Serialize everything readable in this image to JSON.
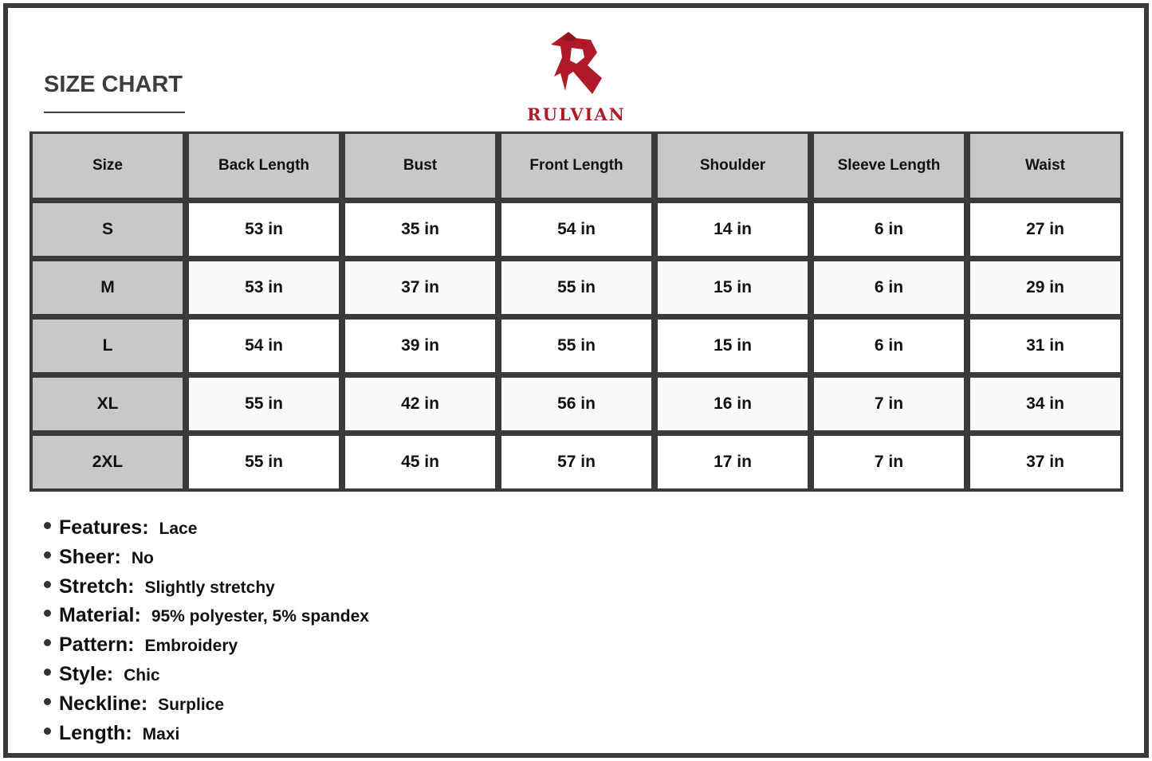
{
  "title": "SIZE CHART",
  "brand": {
    "name": "RULVIAN",
    "color": "#b01a28"
  },
  "table": {
    "headers": [
      "Size",
      "Back Length",
      "Bust",
      "Front Length",
      "Shoulder",
      "Sleeve Length",
      "Waist"
    ],
    "rows": [
      [
        "S",
        "53 in",
        "35 in",
        "54 in",
        "14 in",
        "6 in",
        "27 in"
      ],
      [
        "M",
        "53 in",
        "37 in",
        "55 in",
        "15 in",
        "6 in",
        "29 in"
      ],
      [
        "L",
        "54 in",
        "39 in",
        "55 in",
        "15 in",
        "6 in",
        "31 in"
      ],
      [
        "XL",
        "55 in",
        "42 in",
        "56 in",
        "16 in",
        "7 in",
        "34 in"
      ],
      [
        "2XL",
        "55 in",
        "45 in",
        "57 in",
        "17 in",
        "7 in",
        "37 in"
      ]
    ]
  },
  "features": [
    {
      "label": "Features:",
      "value": "Lace"
    },
    {
      "label": "Sheer:",
      "value": "No"
    },
    {
      "label": "Stretch:",
      "value": "Slightly stretchy"
    },
    {
      "label": "Material:",
      "value": "95% polyester, 5% spandex"
    },
    {
      "label": "Pattern:",
      "value": "Embroidery"
    },
    {
      "label": "Style:",
      "value": "Chic"
    },
    {
      "label": "Neckline:",
      "value": "Surplice"
    },
    {
      "label": "Length:",
      "value": "Maxi"
    }
  ]
}
